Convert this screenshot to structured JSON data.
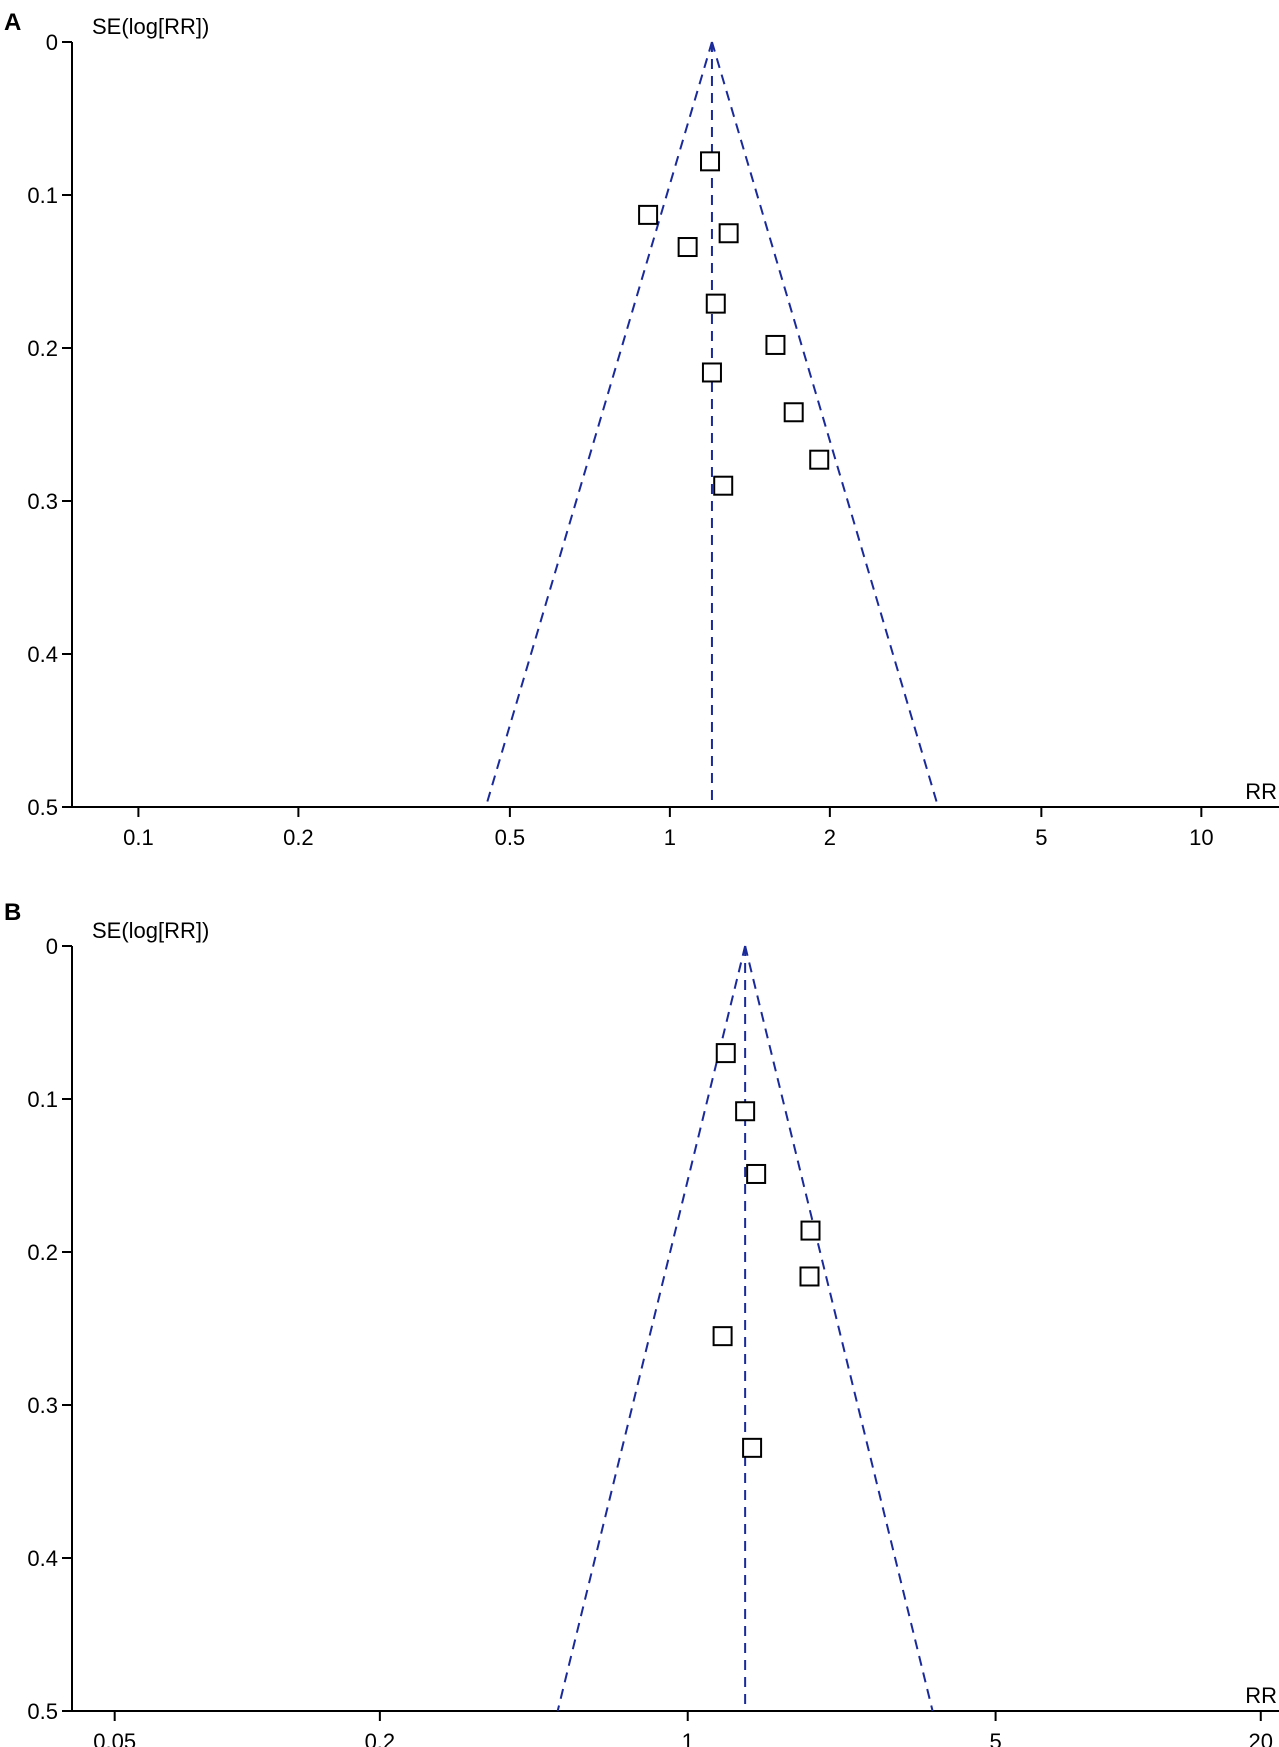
{
  "chart_data": [
    {
      "type": "scatter",
      "panel": "A",
      "ylabel": "SE(log[RR])",
      "xlabel": "RR",
      "x_scale": "log",
      "xlim": [
        0.075,
        14
      ],
      "ylim": [
        0,
        0.5
      ],
      "y_inverted": true,
      "x_ticks": [
        0.1,
        0.2,
        0.5,
        1,
        2,
        5,
        10
      ],
      "x_tick_labels": [
        "0.1",
        "0.2",
        "0.5",
        "1",
        "2",
        "5",
        "10"
      ],
      "y_ticks": [
        0,
        0.1,
        0.2,
        0.3,
        0.4,
        0.5
      ],
      "y_tick_labels": [
        "0",
        "0.1",
        "0.2",
        "0.3",
        "0.4",
        "0.5"
      ],
      "pooled_rr": 1.2,
      "funnel_color": "#1a2a9a",
      "points": [
        {
          "x": 1.19,
          "y": 0.078
        },
        {
          "x": 0.91,
          "y": 0.113
        },
        {
          "x": 1.29,
          "y": 0.125
        },
        {
          "x": 1.08,
          "y": 0.134
        },
        {
          "x": 1.22,
          "y": 0.171
        },
        {
          "x": 1.58,
          "y": 0.198
        },
        {
          "x": 1.2,
          "y": 0.216
        },
        {
          "x": 1.71,
          "y": 0.242
        },
        {
          "x": 1.91,
          "y": 0.273
        },
        {
          "x": 1.26,
          "y": 0.29
        }
      ]
    },
    {
      "type": "scatter",
      "panel": "B",
      "ylabel": "SE(log[RR])",
      "xlabel": "RR",
      "x_scale": "log",
      "xlim": [
        0.04,
        22
      ],
      "ylim": [
        0,
        0.5
      ],
      "y_inverted": true,
      "x_ticks": [
        0.05,
        0.2,
        1,
        5,
        20
      ],
      "x_tick_labels": [
        "0.05",
        "0.2",
        "1",
        "5",
        "20"
      ],
      "y_ticks": [
        0,
        0.1,
        0.2,
        0.3,
        0.4,
        0.5
      ],
      "y_tick_labels": [
        "0",
        "0.1",
        "0.2",
        "0.3",
        "0.4",
        "0.5"
      ],
      "pooled_rr": 1.35,
      "funnel_color": "#1a2a9a",
      "points": [
        {
          "x": 1.22,
          "y": 0.07
        },
        {
          "x": 1.35,
          "y": 0.108
        },
        {
          "x": 1.43,
          "y": 0.149
        },
        {
          "x": 1.9,
          "y": 0.186
        },
        {
          "x": 1.89,
          "y": 0.216
        },
        {
          "x": 1.2,
          "y": 0.255
        },
        {
          "x": 1.4,
          "y": 0.328
        }
      ]
    }
  ]
}
